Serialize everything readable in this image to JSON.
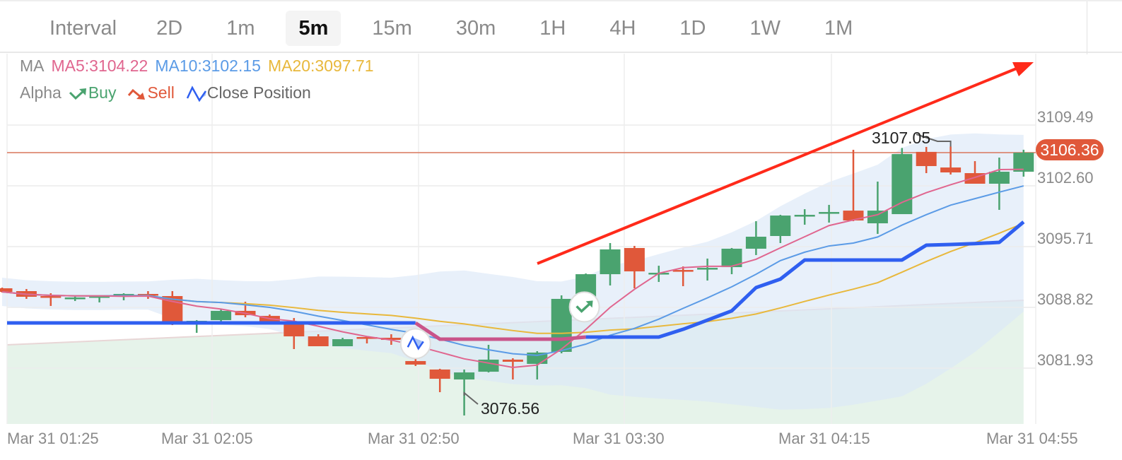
{
  "toolbar": {
    "label": "Interval",
    "intervals": [
      "2D",
      "1m",
      "5m",
      "15m",
      "30m",
      "1H",
      "4H",
      "1D",
      "1W",
      "1M"
    ],
    "selected": "5m"
  },
  "legend": {
    "ma_label": "MA",
    "ma5": "MA5:3104.22",
    "ma10": "MA10:3102.15",
    "ma20": "MA20:3097.71",
    "alpha_label": "Alpha",
    "buy": "Buy",
    "sell": "Sell",
    "close_position": "Close Position"
  },
  "colors": {
    "up": "#4aa36f",
    "down": "#e0583a",
    "ma5": "#e0668f",
    "ma10": "#5b9be6",
    "ma20": "#e8b83c",
    "alpha_line": "#2f5ff0",
    "alpha_line_close": "#c9548a",
    "trend_arrow": "#ff2a1a"
  },
  "icons": {
    "buy": "trend-up-arrow-icon",
    "sell": "trend-down-arrow-icon",
    "close_position": "zigzag-icon"
  },
  "chart_data": {
    "type": "candlestick",
    "y_ticks": [
      "3109.49",
      "3102.60",
      "3095.71",
      "3088.82",
      "3081.93"
    ],
    "x_ticks": [
      "Mar 31 01:25",
      "Mar 31 02:05",
      "Mar 31 02:50",
      "Mar 31 03:30",
      "Mar 31 04:15",
      "Mar 31 04:55"
    ],
    "ylim": [
      3074.5,
      3111.5
    ],
    "grid": true,
    "current_price": "3106.36",
    "high_label": "3107.05",
    "low_label": "3076.56",
    "candles_ohlc": [
      [
        3090.98,
        3091.06,
        3090.5,
        3090.58
      ],
      [
        3090.66,
        3090.9,
        3089.78,
        3090.02
      ],
      [
        3090.1,
        3090.42,
        3088.98,
        3089.94
      ],
      [
        3089.86,
        3090.02,
        3089.54,
        3089.94
      ],
      [
        3089.94,
        3090.18,
        3089.38,
        3090.1
      ],
      [
        3090.18,
        3090.42,
        3089.62,
        3090.34
      ],
      [
        3090.34,
        3090.66,
        3089.78,
        3090.18
      ],
      [
        3090.1,
        3090.66,
        3086.81,
        3086.89
      ],
      [
        3086.89,
        3087.37,
        3085.93,
        3087.29
      ],
      [
        3087.37,
        3088.58,
        3087.21,
        3088.42
      ],
      [
        3088.42,
        3089.46,
        3087.69,
        3087.93
      ],
      [
        3087.85,
        3088.01,
        3086.89,
        3087.13
      ],
      [
        3087.05,
        3087.61,
        3084.09,
        3085.53
      ],
      [
        3085.53,
        3085.77,
        3084.41,
        3084.41
      ],
      [
        3084.41,
        3085.37,
        3084.41,
        3085.21
      ],
      [
        3085.45,
        3085.53,
        3084.73,
        3085.29
      ],
      [
        3085.37,
        3085.77,
        3084.57,
        3085.13
      ],
      [
        3082.73,
        3082.97,
        3082.17,
        3082.33
      ],
      [
        3081.77,
        3081.85,
        3079.2,
        3080.72
      ],
      [
        3080.64,
        3081.77,
        3076.56,
        3081.44
      ],
      [
        3081.52,
        3084.57,
        3081.44,
        3082.89
      ],
      [
        3082.89,
        3083.05,
        3080.64,
        3082.65
      ],
      [
        3082.41,
        3083.85,
        3080.64,
        3083.69
      ],
      [
        3083.77,
        3090.18,
        3083.61,
        3089.78
      ],
      [
        3089.86,
        3092.66,
        3089.46,
        3092.58
      ],
      [
        3092.58,
        3096.11,
        3091.3,
        3095.39
      ],
      [
        3095.55,
        3095.79,
        3090.98,
        3092.9
      ],
      [
        3092.66,
        3093.54,
        3091.7,
        3092.74
      ],
      [
        3093.06,
        3093.46,
        3091.22,
        3093.02
      ],
      [
        3093.22,
        3094.35,
        3091.86,
        3093.3
      ],
      [
        3093.38,
        3095.55,
        3092.58,
        3095.47
      ],
      [
        3095.47,
        3098.59,
        3094.75,
        3096.83
      ],
      [
        3096.91,
        3099.31,
        3096.11,
        3099.23
      ],
      [
        3099.27,
        3099.95,
        3098.19,
        3099.31
      ],
      [
        3099.59,
        3100.44,
        3098.43,
        3099.63
      ],
      [
        3099.79,
        3106.69,
        3098.59,
        3098.67
      ],
      [
        3098.35,
        3103.08,
        3097.15,
        3099.79
      ],
      [
        3099.39,
        3106.9,
        3099.39,
        3106.2
      ],
      [
        3106.45,
        3107.01,
        3104.04,
        3104.84
      ],
      [
        3104.68,
        3107.05,
        3103.88,
        3104.12
      ],
      [
        3104.04,
        3105.4,
        3102.84,
        3102.84
      ],
      [
        3102.84,
        3105.8,
        3099.87,
        3104.2
      ],
      [
        3104.2,
        3106.69,
        3103.64,
        3106.36
      ]
    ],
    "alpha_line": [
      3087.05,
      3087.05,
      3087.05,
      3087.05,
      3087.05,
      3087.05,
      3087.05,
      3087.05,
      3087.05,
      3087.05,
      3087.05,
      3087.05,
      3087.05,
      3087.05,
      3087.05,
      3087.05,
      3087.05,
      3087.05,
      3085.21,
      3085.21,
      3085.21,
      3085.21,
      3085.21,
      3085.21,
      3085.45,
      3085.45,
      3085.45,
      3085.45,
      3086.33,
      3087.37,
      3088.42,
      3091.06,
      3092.02,
      3094.19,
      3094.19,
      3094.19,
      3094.19,
      3094.19,
      3095.87,
      3095.95,
      3096.05,
      3096.19,
      3098.51
    ],
    "alpha_close_segment": [
      17,
      24
    ],
    "area_line": [
      3084.57,
      3089.62
    ],
    "markers": [
      {
        "type": "close_position",
        "index": 17,
        "price": 3083.9
      },
      {
        "type": "buy",
        "index": 24,
        "price": 3087.1
      }
    ]
  }
}
